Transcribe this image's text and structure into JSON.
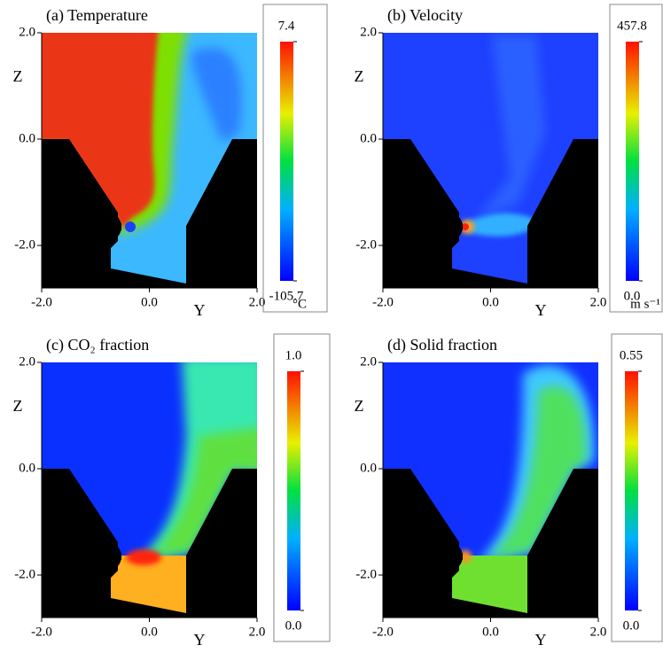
{
  "chart_data": [
    {
      "type": "field",
      "title": "(a) Temperature",
      "x_label": "Y",
      "y_label": "Z",
      "xlim": [
        -2,
        2
      ],
      "ylim": [
        -2.8,
        2
      ],
      "xticks": [
        {
          "value": -2,
          "label": "-2.0"
        },
        {
          "value": 0,
          "label": "0.0"
        },
        {
          "value": 2,
          "label": "2.0"
        }
      ],
      "yticks": [
        {
          "value": -2,
          "label": "-2.0"
        },
        {
          "value": 0,
          "label": "0.0"
        },
        {
          "value": 2,
          "label": "2.0"
        }
      ],
      "clim": [
        -105.7,
        7.4
      ],
      "cticks": [
        -105.7,
        7.4
      ],
      "unit": "°C"
    },
    {
      "type": "field",
      "title": "(b) Velocity",
      "x_label": "Y",
      "y_label": "Z",
      "xlim": [
        -2,
        2
      ],
      "ylim": [
        -2.8,
        2
      ],
      "xticks": [
        {
          "value": -2,
          "label": "-2.0"
        },
        {
          "value": 0,
          "label": "0.0"
        },
        {
          "value": 2,
          "label": "2.0"
        }
      ],
      "yticks": [
        {
          "value": -2,
          "label": "-2.0"
        },
        {
          "value": 0,
          "label": "0.0"
        },
        {
          "value": 2,
          "label": "2.0"
        }
      ],
      "clim": [
        0,
        457.8
      ],
      "cticks": [
        {
          "value": 0,
          "label": "0.0"
        },
        457.8
      ],
      "unit": "m s⁻¹"
    },
    {
      "type": "field",
      "title": "(c) CO₂ fraction",
      "x_label": "Y",
      "y_label": "Z",
      "xlim": [
        -2,
        2
      ],
      "ylim": [
        -2.8,
        2
      ],
      "xticks": [
        {
          "value": -2,
          "label": "-2.0"
        },
        {
          "value": 0,
          "label": "0.0"
        },
        {
          "value": 2,
          "label": "2.0"
        }
      ],
      "yticks": [
        {
          "value": -2,
          "label": "-2.0"
        },
        {
          "value": 0,
          "label": "0.0"
        },
        {
          "value": 2,
          "label": "2.0"
        }
      ],
      "clim": [
        0,
        1
      ],
      "cticks": [
        {
          "value": 0,
          "label": "0.0"
        },
        {
          "value": 1,
          "label": "1.0"
        }
      ]
    },
    {
      "type": "field",
      "title": "(d) Solid fraction",
      "x_label": "Y",
      "y_label": "Z",
      "xlim": [
        -2,
        2
      ],
      "ylim": [
        -2.8,
        2
      ],
      "xticks": [
        {
          "value": -2,
          "label": "-2.0"
        },
        {
          "value": 0,
          "label": "0.0"
        },
        {
          "value": 2,
          "label": "2.0"
        }
      ],
      "yticks": [
        {
          "value": -2,
          "label": "-2.0"
        },
        {
          "value": 0,
          "label": "0.0"
        },
        {
          "value": 2,
          "label": "2.0"
        }
      ],
      "clim": [
        0,
        0.55
      ],
      "cticks": [
        {
          "value": 0,
          "label": "0.0"
        },
        0.55
      ]
    }
  ]
}
